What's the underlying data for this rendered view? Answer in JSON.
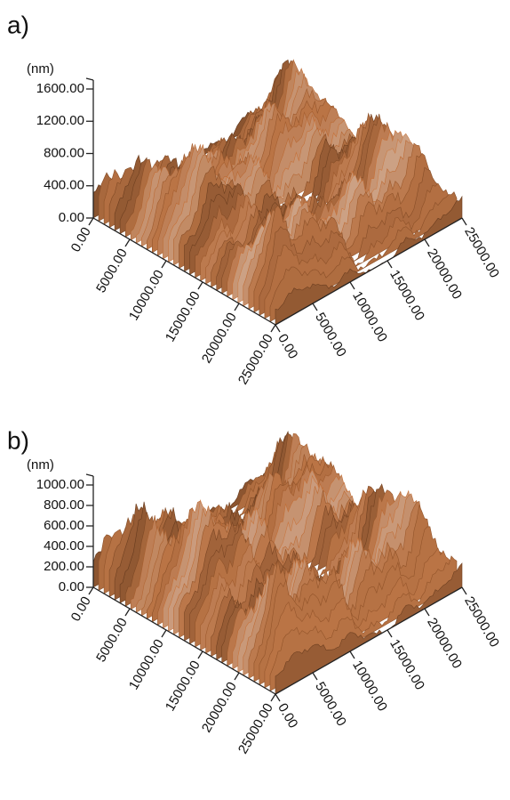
{
  "panels": [
    {
      "label": "a)",
      "z_unit": "(nm)",
      "z_ticks": [
        "1600.00",
        "1200.00",
        "800.00",
        "400.00",
        "0.00"
      ],
      "x_ticks": [
        "0.00",
        "5000.00",
        "10000.00",
        "15000.00",
        "20000.00",
        "25000.00"
      ],
      "y_ticks": [
        "0.00",
        "5000.00",
        "10000.00",
        "15000.00",
        "20000.00",
        "25000.00"
      ]
    },
    {
      "label": "b)",
      "z_unit": "(nm)",
      "z_ticks": [
        "1000.00",
        "800.00",
        "600.00",
        "400.00",
        "200.00",
        "0.00"
      ],
      "x_ticks": [
        "0.00",
        "5000.00",
        "10000.00",
        "15000.00",
        "20000.00",
        "25000.00"
      ],
      "y_ticks": [
        "0.00",
        "5000.00",
        "10000.00",
        "15000.00",
        "20000.00",
        "25000.00"
      ]
    }
  ]
}
